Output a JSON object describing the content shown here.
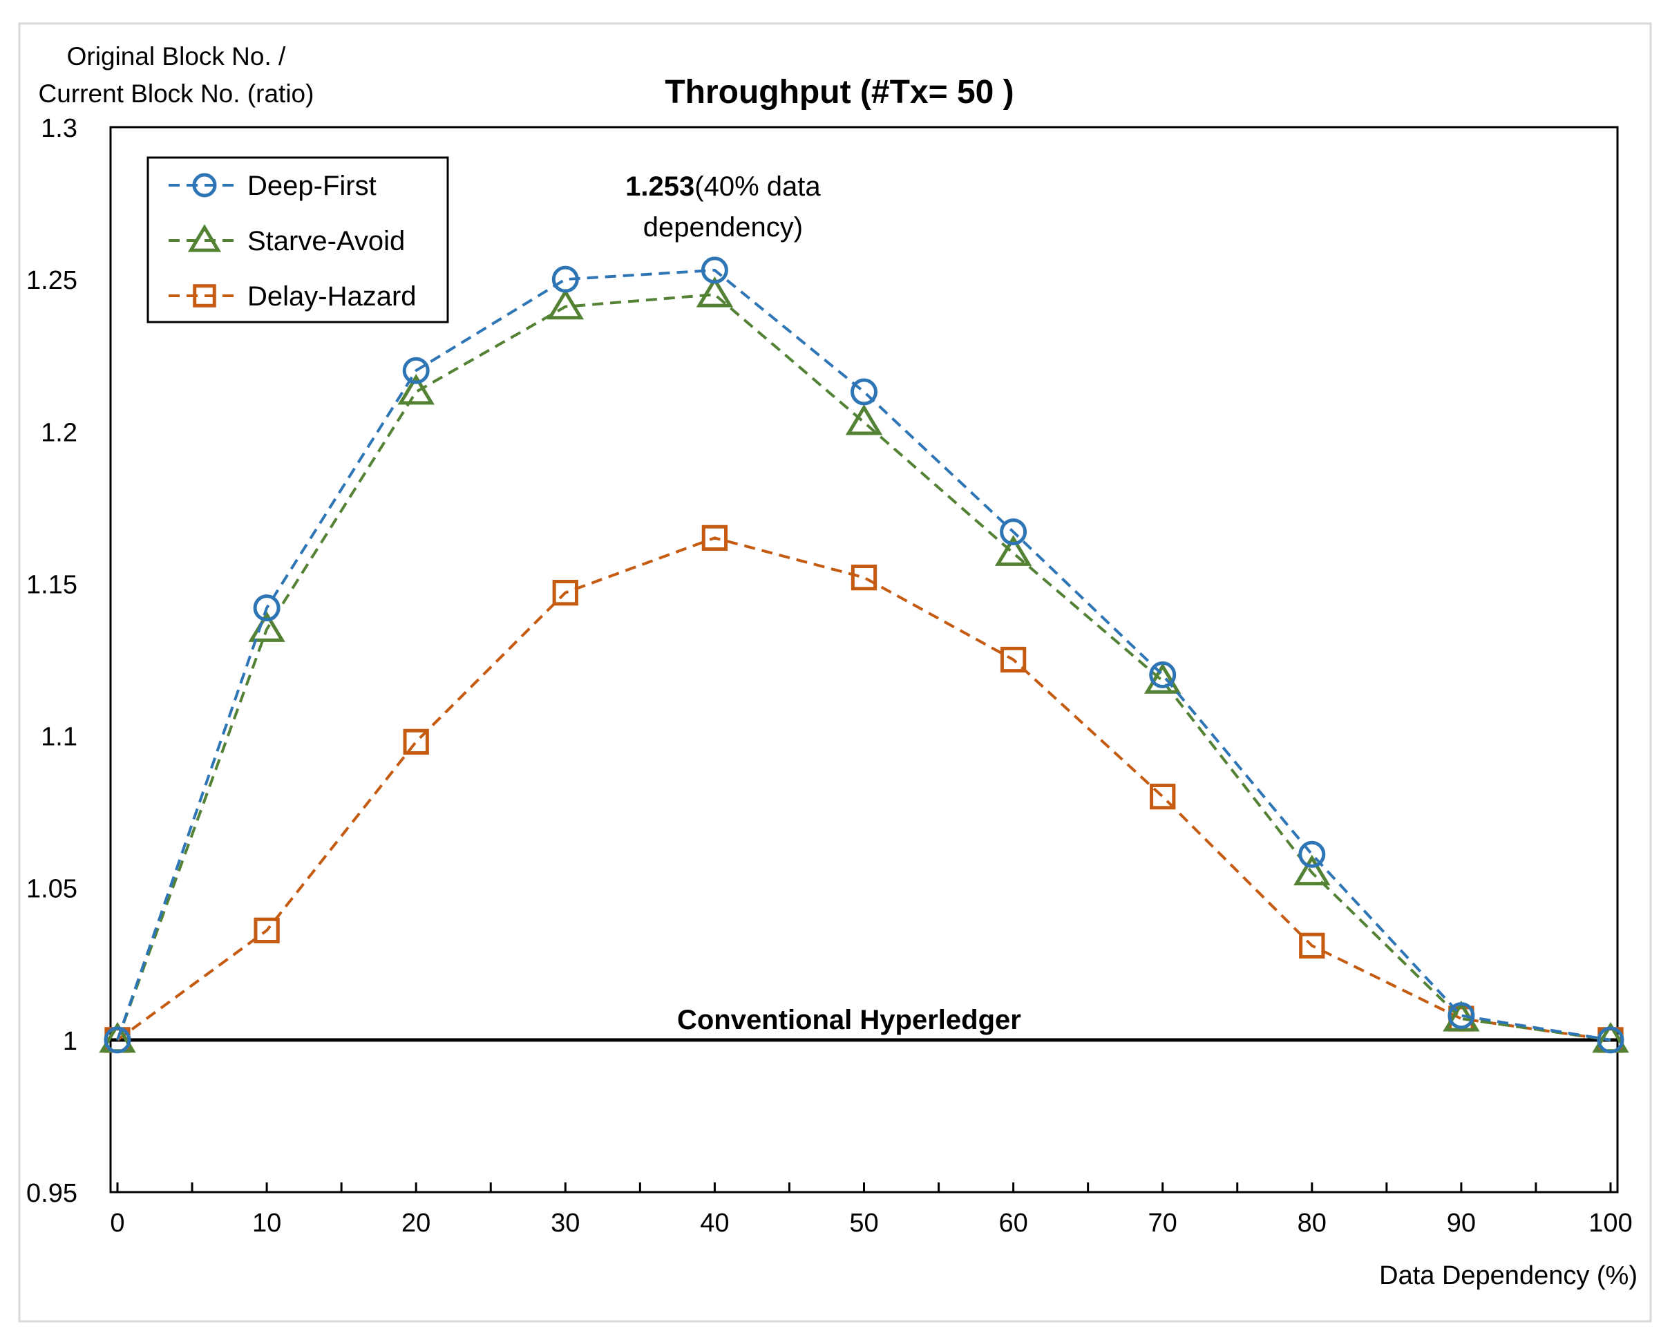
{
  "chart_data": {
    "type": "line",
    "title": "Throughput (#Tx= 50 )",
    "ylabel_line1": "Original Block No. /",
    "ylabel_line2": "Current Block No. (ratio)",
    "xlabel": "Data Dependency (%)",
    "x": [
      0,
      10,
      20,
      30,
      40,
      50,
      60,
      70,
      80,
      90,
      100
    ],
    "xlim": [
      0,
      100
    ],
    "ylim": [
      0.95,
      1.3
    ],
    "x_ticks": [
      "0",
      "10",
      "20",
      "30",
      "40",
      "50",
      "60",
      "70",
      "80",
      "90",
      "100"
    ],
    "y_ticks": [
      "0.95",
      "1",
      "1.05",
      "1.1",
      "1.15",
      "1.2",
      "1.25",
      "1.3"
    ],
    "grid": false,
    "legend_position": "top-left",
    "series": [
      {
        "name": "Deep-First",
        "marker": "circle",
        "color": "#2E75B6",
        "values": [
          1.0,
          1.142,
          1.22,
          1.25,
          1.253,
          1.213,
          1.167,
          1.12,
          1.061,
          1.008,
          1.0
        ]
      },
      {
        "name": "Starve-Avoid",
        "marker": "triangle",
        "color": "#548235",
        "values": [
          1.0,
          1.135,
          1.213,
          1.241,
          1.245,
          1.203,
          1.16,
          1.118,
          1.055,
          1.007,
          1.0
        ]
      },
      {
        "name": "Delay-Hazard",
        "marker": "square",
        "color": "#C55A11",
        "values": [
          1.0,
          1.036,
          1.098,
          1.147,
          1.165,
          1.152,
          1.125,
          1.08,
          1.031,
          1.007,
          1.0
        ]
      }
    ],
    "baseline": {
      "label": "Conventional Hyperledger",
      "value": 1.0
    },
    "annotation": {
      "bold": "1.253",
      "line1_rest": "(40% data",
      "line2": "dependency)",
      "x": 40,
      "y": 1.253
    }
  }
}
